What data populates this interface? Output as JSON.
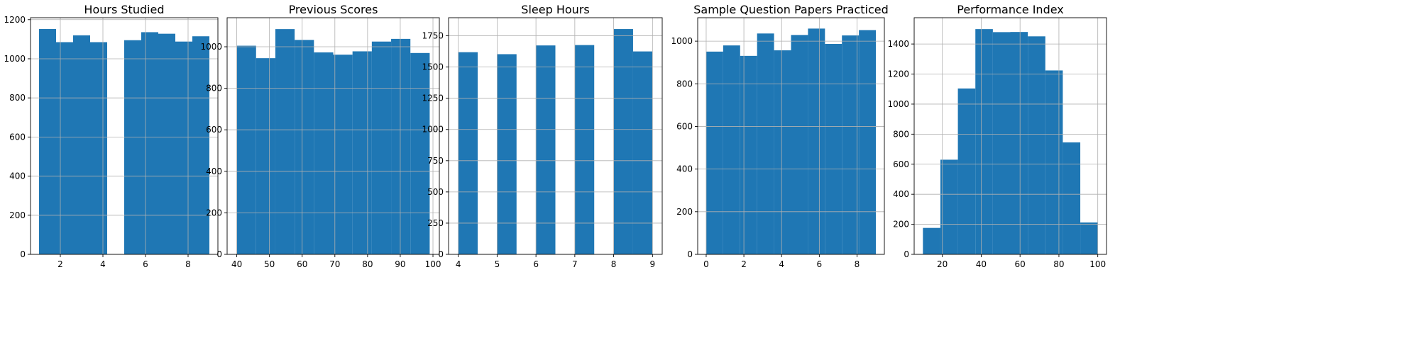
{
  "figure": {
    "bar_color": "#1f77b4",
    "grid_color": "#b0b0b0"
  },
  "chart_data": [
    {
      "type": "bar",
      "title": "Hours Studied",
      "xlabel": "",
      "ylabel": "",
      "grid": true,
      "bins": [
        {
          "x0": 1.0,
          "x1": 1.8,
          "count": 1152
        },
        {
          "x0": 1.8,
          "x1": 2.6,
          "count": 1085
        },
        {
          "x0": 2.6,
          "x1": 3.4,
          "count": 1120
        },
        {
          "x0": 3.4,
          "x1": 4.2,
          "count": 1085
        },
        {
          "x0": 4.2,
          "x1": 5.0,
          "count": 0
        },
        {
          "x0": 5.0,
          "x1": 5.8,
          "count": 1095
        },
        {
          "x0": 5.8,
          "x1": 6.6,
          "count": 1136
        },
        {
          "x0": 6.6,
          "x1": 7.4,
          "count": 1128
        },
        {
          "x0": 7.4,
          "x1": 8.2,
          "count": 1088
        },
        {
          "x0": 8.2,
          "x1": 9.0,
          "count": 1115
        }
      ],
      "xlim": [
        0.6,
        9.4
      ],
      "ylim": [
        0,
        1210
      ],
      "xticks": [
        2,
        4,
        6,
        8
      ],
      "yticks": [
        0,
        200,
        400,
        600,
        800,
        1000,
        1200
      ]
    },
    {
      "type": "bar",
      "title": "Previous Scores",
      "xlabel": "",
      "ylabel": "",
      "grid": true,
      "bins": [
        {
          "x0": 40.0,
          "x1": 45.9,
          "count": 1005
        },
        {
          "x0": 45.9,
          "x1": 51.8,
          "count": 945
        },
        {
          "x0": 51.8,
          "x1": 57.7,
          "count": 1085
        },
        {
          "x0": 57.7,
          "x1": 63.6,
          "count": 1033
        },
        {
          "x0": 63.6,
          "x1": 69.5,
          "count": 973
        },
        {
          "x0": 69.5,
          "x1": 75.4,
          "count": 962
        },
        {
          "x0": 75.4,
          "x1": 81.3,
          "count": 978
        },
        {
          "x0": 81.3,
          "x1": 87.2,
          "count": 1025
        },
        {
          "x0": 87.2,
          "x1": 93.1,
          "count": 1038
        },
        {
          "x0": 93.1,
          "x1": 99.0,
          "count": 970
        }
      ],
      "xlim": [
        37.05,
        101.95
      ],
      "ylim": [
        0,
        1140
      ],
      "xticks": [
        40,
        50,
        60,
        70,
        80,
        90,
        100
      ],
      "yticks": [
        0,
        200,
        400,
        600,
        800,
        1000
      ]
    },
    {
      "type": "bar",
      "title": "Sleep Hours",
      "xlabel": "",
      "ylabel": "",
      "grid": true,
      "bins": [
        {
          "x0": 4.0,
          "x1": 4.5,
          "count": 1619
        },
        {
          "x0": 4.5,
          "x1": 5.0,
          "count": 0
        },
        {
          "x0": 5.0,
          "x1": 5.5,
          "count": 1603
        },
        {
          "x0": 5.5,
          "x1": 6.0,
          "count": 0
        },
        {
          "x0": 6.0,
          "x1": 6.5,
          "count": 1673
        },
        {
          "x0": 6.5,
          "x1": 7.0,
          "count": 0
        },
        {
          "x0": 7.0,
          "x1": 7.5,
          "count": 1676
        },
        {
          "x0": 7.5,
          "x1": 8.0,
          "count": 0
        },
        {
          "x0": 8.0,
          "x1": 8.5,
          "count": 1804
        },
        {
          "x0": 8.5,
          "x1": 9.0,
          "count": 1625
        }
      ],
      "xlim": [
        3.75,
        9.25
      ],
      "ylim": [
        0,
        1895
      ],
      "xticks": [
        4,
        5,
        6,
        7,
        8,
        9
      ],
      "yticks": [
        0,
        250,
        500,
        750,
        1000,
        1250,
        1500,
        1750
      ]
    },
    {
      "type": "bar",
      "title": "Sample Question Papers Practiced",
      "xlabel": "",
      "ylabel": "",
      "grid": true,
      "bins": [
        {
          "x0": 0.0,
          "x1": 0.9,
          "count": 951
        },
        {
          "x0": 0.9,
          "x1": 1.8,
          "count": 980
        },
        {
          "x0": 1.8,
          "x1": 2.7,
          "count": 931
        },
        {
          "x0": 2.7,
          "x1": 3.6,
          "count": 1036
        },
        {
          "x0": 3.6,
          "x1": 4.5,
          "count": 957
        },
        {
          "x0": 4.5,
          "x1": 5.4,
          "count": 1029
        },
        {
          "x0": 5.4,
          "x1": 6.3,
          "count": 1059
        },
        {
          "x0": 6.3,
          "x1": 7.2,
          "count": 987
        },
        {
          "x0": 7.2,
          "x1": 8.1,
          "count": 1027
        },
        {
          "x0": 8.1,
          "x1": 9.0,
          "count": 1052
        }
      ],
      "xlim": [
        -0.45,
        9.45
      ],
      "ylim": [
        0,
        1110
      ],
      "xticks": [
        0,
        2,
        4,
        6,
        8
      ],
      "yticks": [
        0,
        200,
        400,
        600,
        800,
        1000
      ]
    },
    {
      "type": "bar",
      "title": "Performance Index",
      "xlabel": "",
      "ylabel": "",
      "grid": true,
      "bins": [
        {
          "x0": 10,
          "x1": 19,
          "count": 176
        },
        {
          "x0": 19,
          "x1": 28,
          "count": 630
        },
        {
          "x0": 28,
          "x1": 37,
          "count": 1104
        },
        {
          "x0": 37,
          "x1": 46,
          "count": 1499
        },
        {
          "x0": 46,
          "x1": 55,
          "count": 1479
        },
        {
          "x0": 55,
          "x1": 64,
          "count": 1480
        },
        {
          "x0": 64,
          "x1": 73,
          "count": 1451
        },
        {
          "x0": 73,
          "x1": 82,
          "count": 1224
        },
        {
          "x0": 82,
          "x1": 91,
          "count": 745
        },
        {
          "x0": 91,
          "x1": 100,
          "count": 212
        }
      ],
      "xlim": [
        5.5,
        104.5
      ],
      "ylim": [
        0,
        1575
      ],
      "xticks": [
        20,
        40,
        60,
        80,
        100
      ],
      "yticks": [
        0,
        200,
        400,
        600,
        800,
        1000,
        1200,
        1400
      ]
    }
  ]
}
